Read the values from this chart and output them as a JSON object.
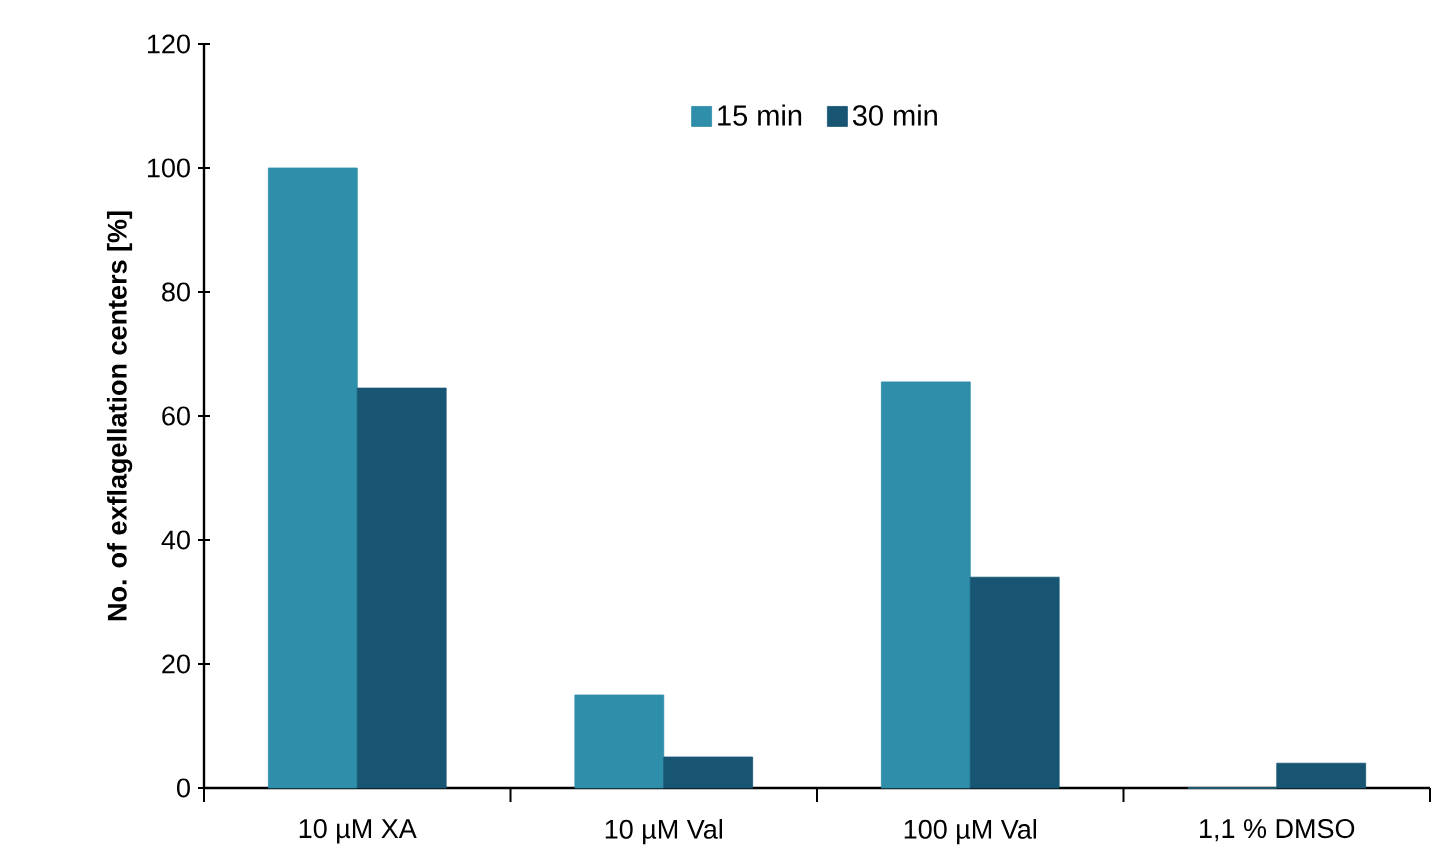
{
  "chart_data": {
    "type": "bar",
    "ylabel": "No. of exflagellation centers [%]",
    "categories": [
      "10 µM XA",
      "10 µM Val",
      "100 µM Val",
      "1,1 % DMSO"
    ],
    "series": [
      {
        "name": "15 min",
        "color": "#2f8ea9",
        "values": [
          100,
          15,
          65.5,
          0
        ]
      },
      {
        "name": "30 min",
        "color": "#175573",
        "values": [
          64.5,
          5,
          34,
          4
        ]
      }
    ],
    "ylim": [
      0,
      120
    ],
    "yticks": [
      0,
      20,
      40,
      60,
      80,
      100,
      120
    ],
    "legend": "top"
  }
}
